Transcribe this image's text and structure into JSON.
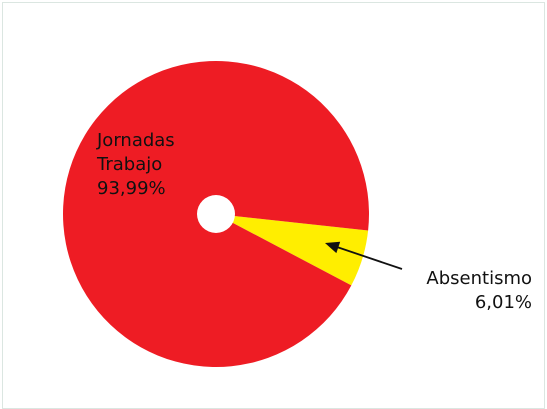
{
  "chart_data": {
    "type": "pie",
    "title": "",
    "slices": [
      {
        "label_lines": [
          "Jornadas",
          "Trabajo"
        ],
        "value": 93.99,
        "value_label": "93,99%",
        "color": "#ee1c24"
      },
      {
        "label_lines": [
          "Absentismo"
        ],
        "value": 6.01,
        "value_label": "6,01%",
        "color": "#ffee00"
      }
    ],
    "legend": "none"
  }
}
